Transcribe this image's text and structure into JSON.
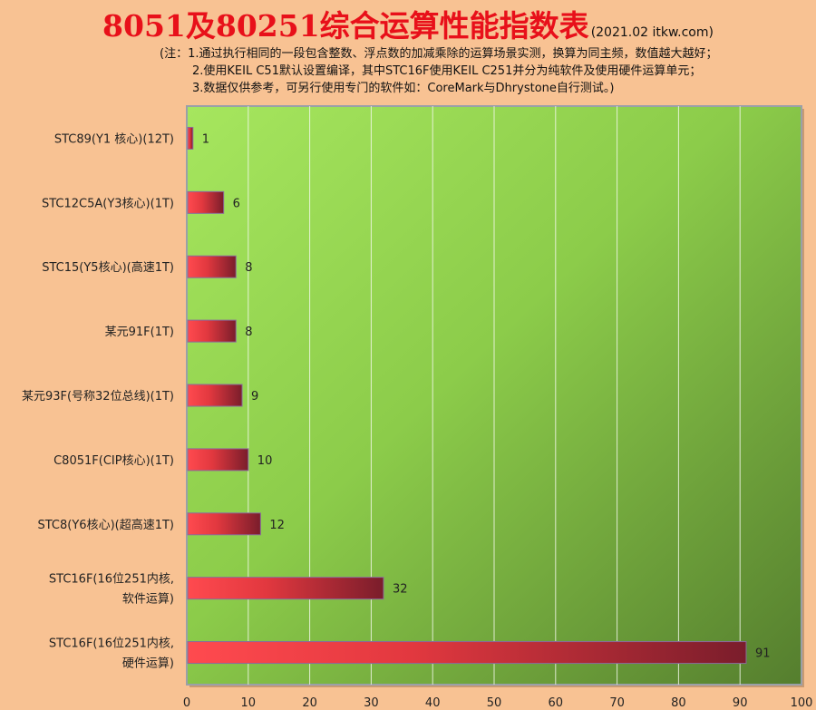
{
  "chart_data": {
    "type": "bar",
    "orientation": "horizontal",
    "title": "8051及80251综合运算性能指数表",
    "subtitle": "(2021.02 itkw.com)",
    "notes": [
      "(注：1.通过执行相同的一段包含整数、浮点数的加减乘除的运算场景实测，换算为同主频，数值越大越好；",
      "2.使用KEIL C51默认设置编译，其中STC16F使用KEIL C251并分为纯软件及使用硬件运算单元；",
      "3.数据仅供参考，可另行使用专门的软件如：CoreMark与Dhrystone自行测试。)"
    ],
    "categories": [
      [
        "STC89(Y1 核心)(12T)"
      ],
      [
        "STC12C5A(Y3核心)(1T)"
      ],
      [
        "STC15(Y5核心)(高速1T)"
      ],
      [
        "某元91F(1T)"
      ],
      [
        "某元93F(号称32位总线)(1T)"
      ],
      [
        "C8051F(CIP核心)(1T)"
      ],
      [
        "STC8(Y6核心)(超高速1T)"
      ],
      [
        "STC16F(16位251内核,",
        "软件运算)"
      ],
      [
        "STC16F(16位251内核,",
        "硬件运算)"
      ]
    ],
    "values": [
      1,
      6,
      8,
      8,
      9,
      10,
      12,
      32,
      91
    ],
    "xlim": [
      0,
      100
    ],
    "xticks": [
      "0",
      "10",
      "20",
      "30",
      "40",
      "50",
      "60",
      "70",
      "80",
      "90",
      "100"
    ],
    "grid": true,
    "colors": {
      "bar_light": "#ff4a4f",
      "bar_dark": "#7a1d2b",
      "plot_light": "#a6e65e",
      "plot_dark": "#557e2e",
      "page_bg": "#f8c293"
    }
  }
}
